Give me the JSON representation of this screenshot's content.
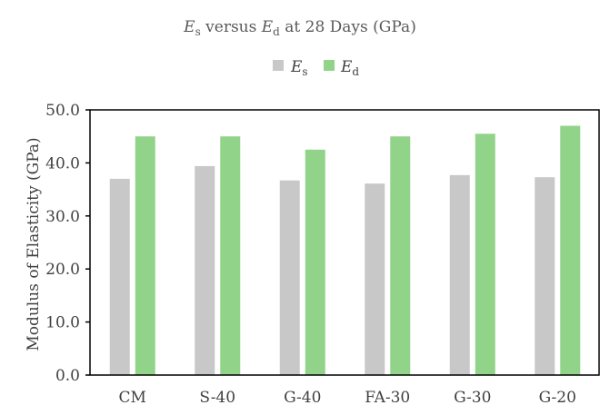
{
  "chart_data": {
    "type": "bar",
    "title": {
      "main_a": "E",
      "sub_a": "s",
      "mid": " versus ",
      "main_b": "E",
      "sub_b": "d",
      "tail": " at 28 Days (GPa)"
    },
    "ylabel": "Modulus of Elasticity (GPa)",
    "xlabel": "",
    "ylim": [
      0,
      50
    ],
    "yticks": [
      0,
      10,
      20,
      30,
      40,
      50
    ],
    "ytick_labels": [
      "0.0",
      "10.0",
      "20.0",
      "30.0",
      "40.0",
      "50.0"
    ],
    "categories": [
      "CM",
      "S-40",
      "G-40",
      "FA-30",
      "G-30",
      "G-20"
    ],
    "series": [
      {
        "name": "Es",
        "label_main": "E",
        "label_sub": "s",
        "color": "#c8c8c8",
        "values": [
          37.0,
          39.4,
          36.7,
          36.1,
          37.7,
          37.3
        ]
      },
      {
        "name": "Ed",
        "label_main": "E",
        "label_sub": "d",
        "color": "#92d38a",
        "values": [
          45.0,
          45.0,
          42.5,
          45.0,
          45.5,
          47.0
        ]
      }
    ],
    "legend_position": "top-center",
    "grid": false
  }
}
